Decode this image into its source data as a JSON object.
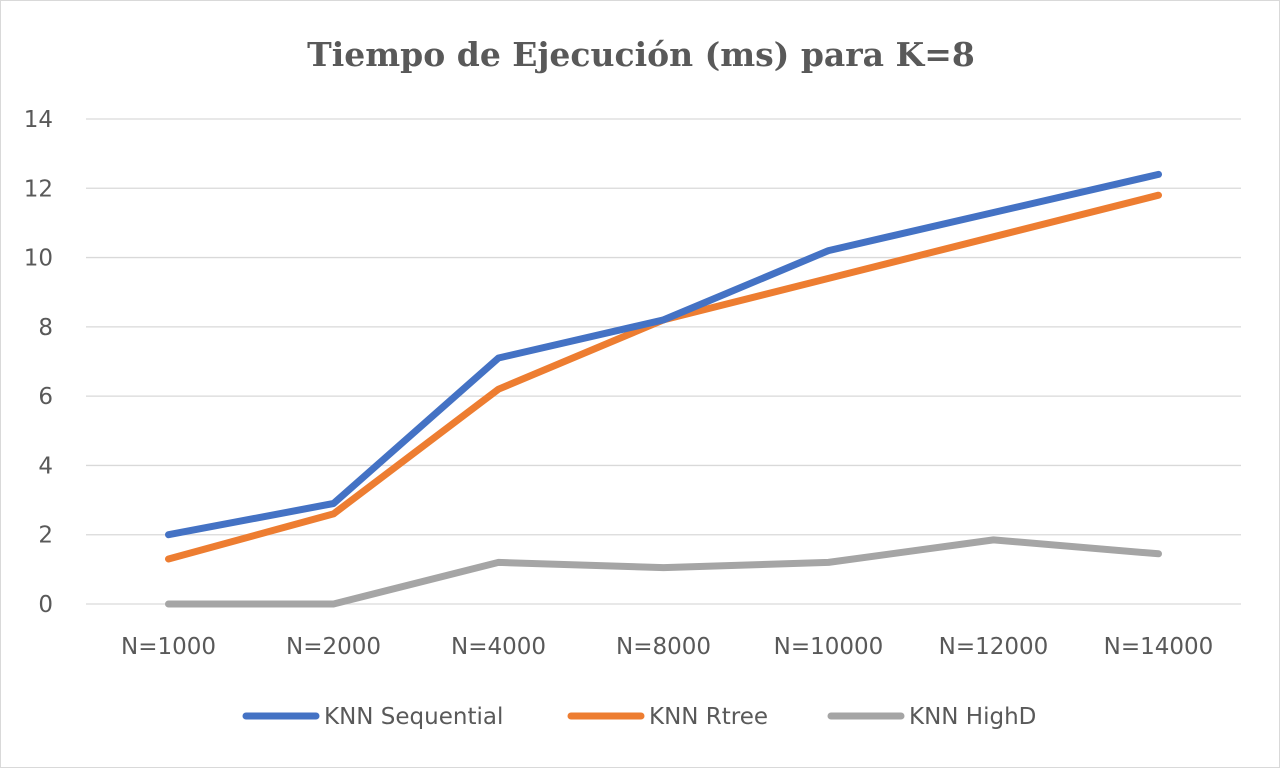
{
  "chart_data": {
    "type": "line",
    "title": "Tiempo de Ejecución (ms) para K=8",
    "xlabel": "",
    "ylabel": "",
    "categories": [
      "N=1000",
      "N=2000",
      "N=4000",
      "N=8000",
      "N=10000",
      "N=12000",
      "N=14000"
    ],
    "ylim": [
      0,
      14
    ],
    "yticks": [
      0,
      2,
      4,
      6,
      8,
      10,
      12,
      14
    ],
    "grid": "horizontal",
    "legend_position": "bottom",
    "series": [
      {
        "name": "KNN Sequential",
        "color": "#4472C4",
        "values": [
          2.0,
          2.9,
          7.1,
          8.2,
          10.2,
          11.3,
          12.4
        ]
      },
      {
        "name": "KNN Rtree",
        "color": "#ED7D31",
        "values": [
          1.3,
          2.6,
          6.2,
          8.2,
          9.4,
          10.6,
          11.8
        ]
      },
      {
        "name": "KNN HighD",
        "color": "#A5A5A5",
        "values": [
          0.0,
          0.0,
          1.2,
          1.05,
          1.2,
          1.85,
          1.45
        ]
      }
    ]
  }
}
